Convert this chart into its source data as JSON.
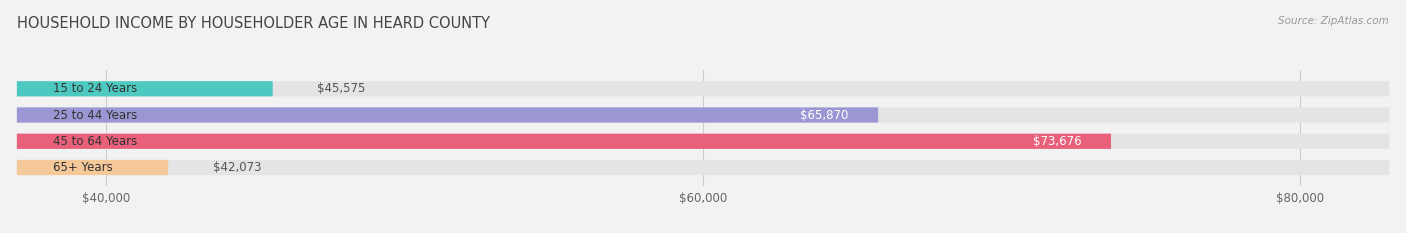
{
  "title": "HOUSEHOLD INCOME BY HOUSEHOLDER AGE IN HEARD COUNTY",
  "source": "Source: ZipAtlas.com",
  "categories": [
    "15 to 24 Years",
    "25 to 44 Years",
    "45 to 64 Years",
    "65+ Years"
  ],
  "values": [
    45575,
    65870,
    73676,
    42073
  ],
  "bar_colors": [
    "#4ec9c2",
    "#9b97d4",
    "#e8607a",
    "#f5c89a"
  ],
  "bar_labels": [
    "$45,575",
    "$65,870",
    "$73,676",
    "$42,073"
  ],
  "label_colors": [
    "#555555",
    "#ffffff",
    "#ffffff",
    "#555555"
  ],
  "x_min": 37000,
  "x_max": 83000,
  "x_ticks": [
    40000,
    60000,
    80000
  ],
  "x_tick_labels": [
    "$40,000",
    "$60,000",
    "$80,000"
  ],
  "background_color": "#f2f2f2",
  "bar_background_color": "#e4e4e4",
  "title_fontsize": 10.5,
  "bar_height": 0.58,
  "figsize": [
    14.06,
    2.33
  ]
}
